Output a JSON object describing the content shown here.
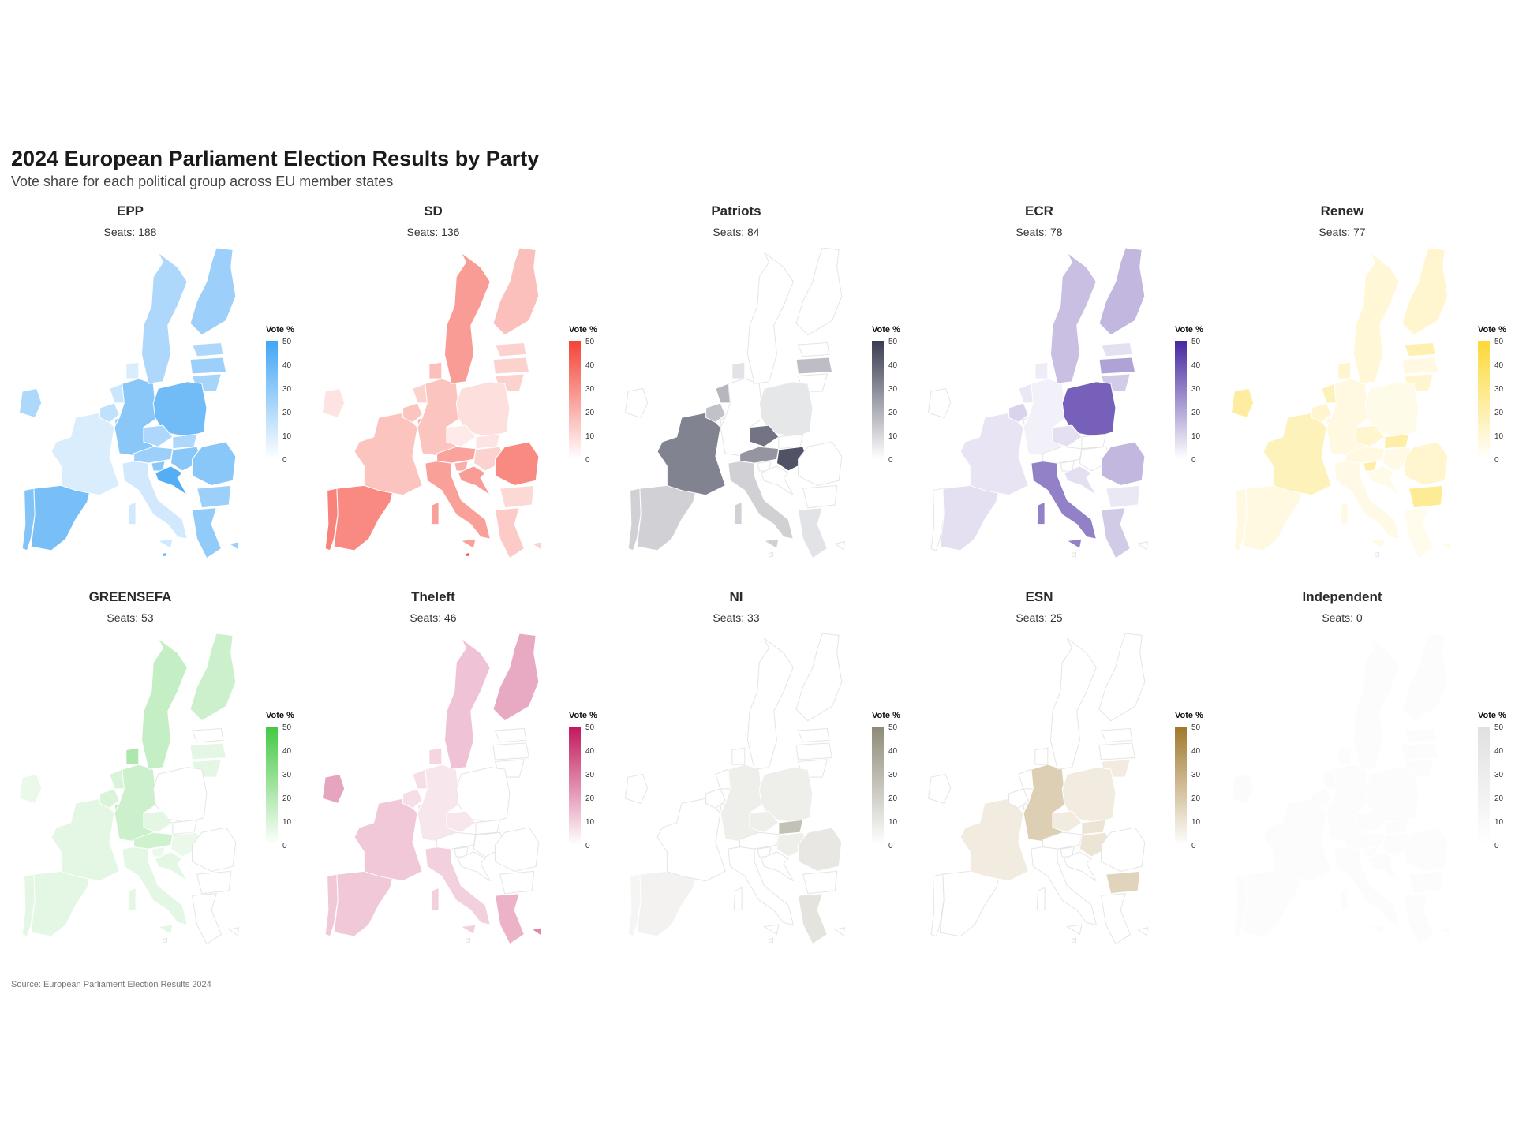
{
  "title": "2024 European Parliament Election Results by Party",
  "subtitle": "Vote share for each political group across EU member states",
  "source": "Source: European Parliament Election Results 2024",
  "legend": {
    "label": "Vote %",
    "ticks": [
      "50",
      "40",
      "30",
      "20",
      "10",
      "0"
    ],
    "range": [
      0,
      50
    ]
  },
  "chart_data": {
    "type": "choropleth",
    "value_unit": "vote %",
    "countries": [
      "PT",
      "ES",
      "FR",
      "IE",
      "BE",
      "NL",
      "LU",
      "DE",
      "DK",
      "SE",
      "FI",
      "EE",
      "LV",
      "LT",
      "PL",
      "CZ",
      "SK",
      "AT",
      "HU",
      "SI",
      "HR",
      "IT",
      "RO",
      "BG",
      "GR",
      "CY",
      "MT"
    ],
    "parties": [
      {
        "name": "EPP",
        "seats_label": "Seats: 188",
        "color": "#42a5f5",
        "values": {
          "PT": 32,
          "ES": 35,
          "FR": 8,
          "IE": 20,
          "BE": 15,
          "NL": 12,
          "LU": 22,
          "DE": 30,
          "DK": 8,
          "SE": 20,
          "FI": 25,
          "EE": 20,
          "LV": 25,
          "LT": 22,
          "PL": 37,
          "CZ": 20,
          "SK": 20,
          "AT": 25,
          "HU": 30,
          "SI": 30,
          "HR": 45,
          "IT": 10,
          "RO": 30,
          "BG": 25,
          "GR": 28,
          "CY": 25,
          "MT": 40
        }
      },
      {
        "name": "SD",
        "seats_label": "Seats: 136",
        "color": "#f44336",
        "values": {
          "PT": 32,
          "ES": 30,
          "FR": 14,
          "IE": 5,
          "BE": 14,
          "NL": 10,
          "LU": 20,
          "DE": 14,
          "DK": 15,
          "SE": 25,
          "FI": 15,
          "EE": 10,
          "LV": 10,
          "LT": 10,
          "PL": 6,
          "CZ": 3,
          "SK": 5,
          "AT": 23,
          "HU": 10,
          "SI": 20,
          "HR": 25,
          "IT": 24,
          "RO": 30,
          "BG": 8,
          "GR": 12,
          "CY": 10,
          "MT": 45
        }
      },
      {
        "name": "Patriots",
        "seats_label": "Seats: 84",
        "color": "#3a3d52",
        "values": {
          "PT": 10,
          "ES": 10,
          "FR": 31,
          "IE": 0,
          "BE": 14,
          "NL": 17,
          "LU": 0,
          "DE": 0,
          "DK": 5,
          "SE": 0,
          "FI": 0,
          "EE": 0,
          "LV": 15,
          "LT": 0,
          "PL": 4,
          "CZ": 35,
          "SK": 0,
          "AT": 26,
          "HU": 44,
          "SI": 0,
          "HR": 0,
          "IT": 10,
          "RO": 0,
          "BG": 0,
          "GR": 5,
          "CY": 0,
          "MT": 0
        }
      },
      {
        "name": "ECR",
        "seats_label": "Seats: 78",
        "color": "#4527a0",
        "values": {
          "PT": 0,
          "ES": 5,
          "FR": 4,
          "IE": 0,
          "BE": 8,
          "NL": 3,
          "LU": 0,
          "DE": 1,
          "DK": 2,
          "SE": 13,
          "FI": 15,
          "EE": 5,
          "LV": 20,
          "LT": 10,
          "PL": 36,
          "CZ": 5,
          "SK": 0,
          "AT": 0,
          "HU": 0,
          "SI": 0,
          "HR": 5,
          "IT": 28,
          "RO": 15,
          "BG": 3,
          "GR": 10,
          "CY": 0,
          "MT": 0
        }
      },
      {
        "name": "Renew",
        "seats_label": "Seats: 77",
        "color": "#fdd835",
        "values": {
          "PT": 5,
          "ES": 5,
          "FR": 15,
          "IE": 22,
          "BE": 10,
          "NL": 15,
          "LU": 10,
          "DE": 5,
          "DK": 10,
          "SE": 8,
          "FI": 10,
          "EE": 18,
          "LV": 5,
          "LT": 10,
          "PL": 3,
          "CZ": 10,
          "SK": 20,
          "AT": 5,
          "HU": 4,
          "SI": 20,
          "HR": 3,
          "IT": 4,
          "RO": 10,
          "BG": 25,
          "GR": 2,
          "CY": 3,
          "MT": 0
        }
      },
      {
        "name": "GREENSEFA",
        "seats_label": "Seats: 53",
        "color": "#43c843",
        "values": {
          "PT": 5,
          "ES": 5,
          "FR": 5,
          "IE": 3,
          "BE": 8,
          "NL": 8,
          "LU": 15,
          "DE": 12,
          "DK": 20,
          "SE": 14,
          "FI": 12,
          "EE": 0,
          "LV": 5,
          "LT": 5,
          "PL": 0,
          "CZ": 5,
          "SK": 0,
          "AT": 11,
          "HU": 3,
          "SI": 3,
          "HR": 5,
          "IT": 5,
          "RO": 0,
          "BG": 0,
          "GR": 0,
          "CY": 0,
          "MT": 0
        }
      },
      {
        "name": "Theleft",
        "seats_label": "Seats: 46",
        "color": "#c2185b",
        "values": {
          "PT": 10,
          "ES": 10,
          "FR": 10,
          "IE": 18,
          "BE": 5,
          "NL": 5,
          "LU": 3,
          "DE": 3,
          "DK": 7,
          "SE": 11,
          "FI": 17,
          "EE": 0,
          "LV": 0,
          "LT": 0,
          "PL": 0,
          "CZ": 3,
          "SK": 0,
          "AT": 0,
          "HU": 0,
          "SI": 0,
          "HR": 0,
          "IT": 8,
          "RO": 0,
          "BG": 0,
          "GR": 15,
          "CY": 25,
          "MT": 0
        }
      },
      {
        "name": "NI",
        "seats_label": "Seats: 33",
        "color": "#8d8a76",
        "values": {
          "PT": 2,
          "ES": 3,
          "FR": 0,
          "IE": 0,
          "BE": 0,
          "NL": 0,
          "LU": 0,
          "DE": 5,
          "DK": 0,
          "SE": 0,
          "FI": 0,
          "EE": 0,
          "LV": 0,
          "LT": 0,
          "PL": 5,
          "CZ": 5,
          "SK": 25,
          "AT": 0,
          "HU": 5,
          "SI": 0,
          "HR": 0,
          "IT": 0,
          "RO": 8,
          "BG": 0,
          "GR": 10,
          "CY": 0,
          "MT": 0
        }
      },
      {
        "name": "ESN",
        "seats_label": "Seats: 25",
        "color": "#a0782a",
        "values": {
          "PT": 0,
          "ES": 0,
          "FR": 5,
          "IE": 0,
          "BE": 0,
          "NL": 0,
          "LU": 0,
          "DE": 16,
          "DK": 0,
          "SE": 0,
          "FI": 0,
          "EE": 0,
          "LV": 0,
          "LT": 5,
          "PL": 5,
          "CZ": 5,
          "SK": 8,
          "AT": 0,
          "HU": 8,
          "SI": 0,
          "HR": 0,
          "IT": 0,
          "RO": 0,
          "BG": 14,
          "GR": 0,
          "CY": 0,
          "MT": 0
        }
      },
      {
        "name": "Independent",
        "seats_label": "Seats: 0",
        "color": "#e0e0e0",
        "values": {
          "PT": 2,
          "ES": 2,
          "FR": 2,
          "IE": 5,
          "BE": 2,
          "NL": 2,
          "LU": 2,
          "DE": 2,
          "DK": 2,
          "SE": 2,
          "FI": 2,
          "EE": 2,
          "LV": 3,
          "LT": 3,
          "PL": 2,
          "CZ": 2,
          "SK": 2,
          "AT": 2,
          "HU": 2,
          "SI": 2,
          "HR": 2,
          "IT": 2,
          "RO": 2,
          "BG": 3,
          "GR": 3,
          "CY": 2,
          "MT": 2
        }
      }
    ]
  }
}
